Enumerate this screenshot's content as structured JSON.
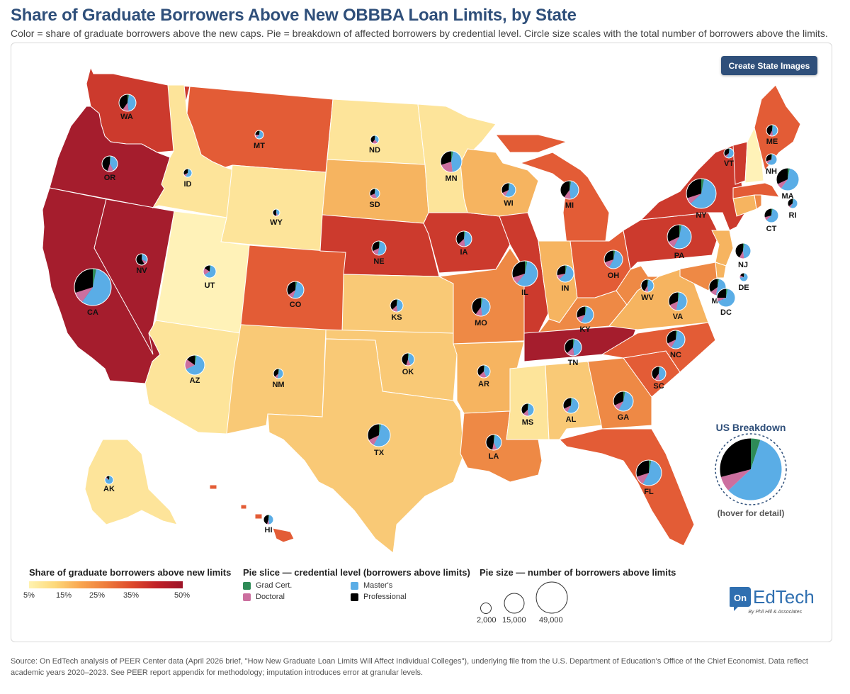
{
  "header": {
    "title": "Share of Graduate Borrowers Above New OBBBA Loan Limits, by State",
    "subtitle": "Color = share of graduate borrowers above the new caps. Pie = breakdown of affected borrowers by credential level. Circle size scales with the total number of borrowers above the limits."
  },
  "button": {
    "label": "Create State Images"
  },
  "us_breakdown": {
    "title": "US Breakdown",
    "hint": "(hover for detail)",
    "slices": [
      0.05,
      0.58,
      0.08,
      0.29
    ]
  },
  "legend": {
    "share_title": "Share of graduate borrowers above new limits",
    "share_ticks": [
      "5%",
      "15%",
      "25%",
      "35%",
      "50%"
    ],
    "pie_title": "Pie slice — credential level (borrowers above limits)",
    "categories": [
      {
        "label": "Grad Cert.",
        "color": "#2e8b57"
      },
      {
        "label": "Master's",
        "color": "#5aade6"
      },
      {
        "label": "Doctoral",
        "color": "#cc6f9f"
      },
      {
        "label": "Professional",
        "color": "#000000"
      }
    ],
    "size_title": "Pie size — number of borrowers above limits",
    "size_values": [
      "2,000",
      "15,000",
      "49,000"
    ]
  },
  "logo": {
    "name": "EdTech",
    "prefix": "On",
    "tagline": "By Phil Hill & Associates"
  },
  "source": "Source: On EdTech analysis of PEER Center data (April 2026 brief, \"How New Graduate Loan Limits Will Affect Individual Colleges\"), underlying file from the U.S. Department of Education's Office of the Chief Economist. Data reflect academic years 2020–2023. See PEER report appendix for methodology; imputation introduces error at granular levels.",
  "colors": {
    "darkred": "#a51d2d",
    "red": "#cc3a2d",
    "redorange": "#e35c36",
    "orange": "#ee8945",
    "lightorange": "#f6b460",
    "amber": "#f9c976",
    "lightyellow": "#fde49a",
    "paleyellow": "#fff2b8",
    "master": "#5aade6",
    "doctoral": "#cc6f9f",
    "professional": "#000000",
    "gradcert": "#2e8b57"
  },
  "states": [
    {
      "abbr": "WA",
      "fill": "red",
      "s": [
        0.03,
        0.45,
        0.12,
        0.4
      ]
    },
    {
      "abbr": "OR",
      "fill": "darkred",
      "s": [
        0.02,
        0.4,
        0.13,
        0.45
      ]
    },
    {
      "abbr": "CA",
      "fill": "darkred",
      "s": [
        0.03,
        0.57,
        0.1,
        0.3
      ]
    },
    {
      "abbr": "NV",
      "fill": "darkred",
      "s": [
        0.02,
        0.3,
        0.1,
        0.58
      ]
    },
    {
      "abbr": "ID",
      "fill": "lightyellow",
      "s": [
        0.03,
        0.55,
        0.1,
        0.32
      ]
    },
    {
      "abbr": "MT",
      "fill": "redorange",
      "s": [
        0.03,
        0.6,
        0.12,
        0.25
      ]
    },
    {
      "abbr": "WY",
      "fill": "lightyellow",
      "s": [
        0.02,
        0.4,
        0.08,
        0.5
      ]
    },
    {
      "abbr": "UT",
      "fill": "paleyellow",
      "s": [
        0.03,
        0.63,
        0.18,
        0.16
      ]
    },
    {
      "abbr": "AZ",
      "fill": "lightyellow",
      "s": [
        0.03,
        0.65,
        0.17,
        0.15
      ]
    },
    {
      "abbr": "CO",
      "fill": "redorange",
      "s": [
        0.03,
        0.52,
        0.1,
        0.35
      ]
    },
    {
      "abbr": "NM",
      "fill": "amber",
      "s": [
        0.03,
        0.5,
        0.1,
        0.37
      ]
    },
    {
      "abbr": "ND",
      "fill": "lightyellow",
      "s": [
        0.03,
        0.35,
        0.22,
        0.4
      ]
    },
    {
      "abbr": "SD",
      "fill": "lightorange",
      "s": [
        0.03,
        0.4,
        0.25,
        0.32
      ]
    },
    {
      "abbr": "NE",
      "fill": "red",
      "s": [
        0.03,
        0.5,
        0.15,
        0.32
      ]
    },
    {
      "abbr": "KS",
      "fill": "amber",
      "s": [
        0.03,
        0.45,
        0.15,
        0.37
      ]
    },
    {
      "abbr": "OK",
      "fill": "amber",
      "s": [
        0.03,
        0.4,
        0.12,
        0.45
      ]
    },
    {
      "abbr": "TX",
      "fill": "amber",
      "s": [
        0.03,
        0.55,
        0.1,
        0.32
      ]
    },
    {
      "abbr": "MN",
      "fill": "lightyellow",
      "s": [
        0.03,
        0.45,
        0.22,
        0.3
      ]
    },
    {
      "abbr": "IA",
      "fill": "red",
      "s": [
        0.03,
        0.45,
        0.15,
        0.37
      ]
    },
    {
      "abbr": "MO",
      "fill": "orange",
      "s": [
        0.03,
        0.45,
        0.12,
        0.4
      ]
    },
    {
      "abbr": "AR",
      "fill": "lightorange",
      "s": [
        0.03,
        0.4,
        0.2,
        0.37
      ]
    },
    {
      "abbr": "LA",
      "fill": "orange",
      "s": [
        0.03,
        0.4,
        0.1,
        0.47
      ]
    },
    {
      "abbr": "WI",
      "fill": "lightorange",
      "s": [
        0.03,
        0.55,
        0.1,
        0.32
      ]
    },
    {
      "abbr": "IL",
      "fill": "red",
      "s": [
        0.03,
        0.58,
        0.09,
        0.3
      ]
    },
    {
      "abbr": "MI",
      "fill": "redorange",
      "s": [
        0.03,
        0.45,
        0.12,
        0.4
      ]
    },
    {
      "abbr": "IN",
      "fill": "lightorange",
      "s": [
        0.03,
        0.6,
        0.09,
        0.28
      ]
    },
    {
      "abbr": "OH",
      "fill": "redorange",
      "s": [
        0.03,
        0.55,
        0.12,
        0.3
      ]
    },
    {
      "abbr": "KY",
      "fill": "orange",
      "s": [
        0.03,
        0.55,
        0.12,
        0.3
      ]
    },
    {
      "abbr": "TN",
      "fill": "darkred",
      "s": [
        0.03,
        0.45,
        0.15,
        0.37
      ]
    },
    {
      "abbr": "MS",
      "fill": "lightyellow",
      "s": [
        0.03,
        0.45,
        0.15,
        0.37
      ]
    },
    {
      "abbr": "AL",
      "fill": "amber",
      "s": [
        0.03,
        0.55,
        0.1,
        0.32
      ]
    },
    {
      "abbr": "GA",
      "fill": "orange",
      "s": [
        0.03,
        0.55,
        0.1,
        0.32
      ]
    },
    {
      "abbr": "FL",
      "fill": "redorange",
      "s": [
        0.03,
        0.55,
        0.12,
        0.3
      ]
    },
    {
      "abbr": "SC",
      "fill": "redorange",
      "s": [
        0.03,
        0.45,
        0.12,
        0.4
      ]
    },
    {
      "abbr": "NC",
      "fill": "redorange",
      "s": [
        0.03,
        0.55,
        0.1,
        0.32
      ]
    },
    {
      "abbr": "VA",
      "fill": "lightorange",
      "s": [
        0.03,
        0.5,
        0.15,
        0.32
      ]
    },
    {
      "abbr": "WV",
      "fill": "orange",
      "s": [
        0.03,
        0.45,
        0.1,
        0.42
      ]
    },
    {
      "abbr": "PA",
      "fill": "red",
      "s": [
        0.03,
        0.55,
        0.1,
        0.32
      ]
    },
    {
      "abbr": "NY",
      "fill": "red",
      "s": [
        0.03,
        0.6,
        0.07,
        0.3
      ]
    },
    {
      "abbr": "NJ",
      "fill": "lightorange",
      "s": [
        0.03,
        0.45,
        0.1,
        0.42
      ]
    },
    {
      "abbr": "DE",
      "fill": "lightorange",
      "s": [
        0.03,
        0.7,
        0.1,
        0.17
      ]
    },
    {
      "abbr": "MD",
      "fill": "orange",
      "s": [
        0.03,
        0.5,
        0.12,
        0.35
      ]
    },
    {
      "abbr": "DC",
      "fill": "orange",
      "s": [
        0.03,
        0.65,
        0.07,
        0.25
      ]
    },
    {
      "abbr": "CT",
      "fill": "lightorange",
      "s": [
        0.03,
        0.6,
        0.08,
        0.29
      ]
    },
    {
      "abbr": "RI",
      "fill": "orange",
      "s": [
        0.03,
        0.55,
        0.07,
        0.35
      ]
    },
    {
      "abbr": "MA",
      "fill": "redorange",
      "s": [
        0.03,
        0.57,
        0.08,
        0.32
      ]
    },
    {
      "abbr": "VT",
      "fill": "red",
      "s": [
        0.03,
        0.55,
        0.07,
        0.35
      ]
    },
    {
      "abbr": "NH",
      "fill": "paleyellow",
      "s": [
        0.03,
        0.6,
        0.07,
        0.3
      ]
    },
    {
      "abbr": "ME",
      "fill": "redorange",
      "s": [
        0.03,
        0.45,
        0.1,
        0.42
      ]
    },
    {
      "abbr": "AK",
      "fill": "lightyellow",
      "s": [
        0.03,
        0.8,
        0.05,
        0.12
      ]
    },
    {
      "abbr": "HI",
      "fill": "redorange",
      "s": [
        0.03,
        0.45,
        0.07,
        0.45
      ]
    }
  ]
}
